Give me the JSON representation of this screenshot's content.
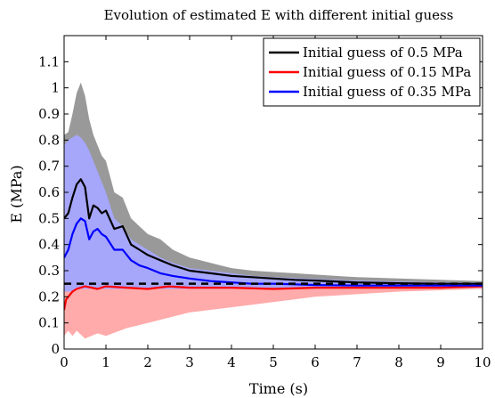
{
  "chart_data": {
    "type": "line",
    "title": "Evolution of estimated E with different initial guess",
    "xlabel": "Time (s)",
    "ylabel": "E (MPa)",
    "xlim": [
      0,
      10
    ],
    "ylim": [
      0,
      1.2
    ],
    "xticks": [
      0,
      1,
      2,
      3,
      4,
      5,
      6,
      7,
      8,
      9,
      10
    ],
    "yticks": [
      0,
      0.1,
      0.2,
      0.3,
      0.4,
      0.5,
      0.6,
      0.7,
      0.8,
      0.9,
      1,
      1.1
    ],
    "grid": false,
    "legend_position": "top-right",
    "reference_line": {
      "y": 0.25,
      "style": "dashed",
      "color": "#000000"
    },
    "series": [
      {
        "name": "Initial guess of 0.5 MPa",
        "color": "#000000",
        "band_color": "#999999",
        "x": [
          0,
          0.1,
          0.2,
          0.3,
          0.4,
          0.5,
          0.6,
          0.7,
          0.8,
          0.9,
          1.0,
          1.2,
          1.4,
          1.6,
          1.8,
          2.0,
          2.3,
          2.6,
          3.0,
          3.5,
          4.0,
          4.5,
          5.0,
          5.5,
          6.0,
          7.0,
          8.0,
          9.0,
          10.0
        ],
        "values": [
          0.5,
          0.52,
          0.58,
          0.63,
          0.65,
          0.62,
          0.5,
          0.55,
          0.54,
          0.52,
          0.53,
          0.46,
          0.47,
          0.4,
          0.38,
          0.36,
          0.34,
          0.32,
          0.3,
          0.29,
          0.28,
          0.275,
          0.27,
          0.265,
          0.262,
          0.255,
          0.252,
          0.25,
          0.25
        ],
        "band_upper": [
          0.82,
          0.83,
          0.9,
          0.98,
          1.02,
          0.97,
          0.88,
          0.82,
          0.78,
          0.74,
          0.72,
          0.6,
          0.58,
          0.5,
          0.47,
          0.44,
          0.42,
          0.38,
          0.35,
          0.33,
          0.31,
          0.3,
          0.295,
          0.29,
          0.285,
          0.275,
          0.27,
          0.265,
          0.26
        ],
        "band_lower": [
          0.22,
          0.22,
          0.22,
          0.23,
          0.23,
          0.23,
          0.23,
          0.23,
          0.23,
          0.23,
          0.23,
          0.23,
          0.23,
          0.23,
          0.23,
          0.23,
          0.23,
          0.23,
          0.23,
          0.23,
          0.23,
          0.23,
          0.23,
          0.23,
          0.23,
          0.235,
          0.235,
          0.235,
          0.235
        ]
      },
      {
        "name": "Initial guess of 0.15 MPa",
        "color": "#ff0000",
        "band_color": "#ffa6a6",
        "x": [
          0,
          0.05,
          0.1,
          0.2,
          0.3,
          0.5,
          0.8,
          1.0,
          1.5,
          2.0,
          2.5,
          3.0,
          4.0,
          5.0,
          6.0,
          7.0,
          8.0,
          9.0,
          10.0
        ],
        "values": [
          0.15,
          0.19,
          0.2,
          0.22,
          0.23,
          0.24,
          0.23,
          0.24,
          0.235,
          0.23,
          0.24,
          0.235,
          0.235,
          0.23,
          0.235,
          0.235,
          0.235,
          0.235,
          0.24
        ],
        "band_upper": [
          0.22,
          0.22,
          0.23,
          0.23,
          0.24,
          0.24,
          0.24,
          0.24,
          0.24,
          0.24,
          0.24,
          0.24,
          0.24,
          0.24,
          0.24,
          0.24,
          0.24,
          0.24,
          0.24
        ],
        "band_lower": [
          0.05,
          0.06,
          0.07,
          0.05,
          0.07,
          0.04,
          0.06,
          0.05,
          0.08,
          0.1,
          0.12,
          0.14,
          0.16,
          0.18,
          0.2,
          0.21,
          0.22,
          0.225,
          0.23
        ]
      },
      {
        "name": "Initial guess of 0.35 MPa",
        "color": "#0000ff",
        "band_color": "#a6a6ff",
        "x": [
          0,
          0.1,
          0.2,
          0.3,
          0.4,
          0.5,
          0.6,
          0.7,
          0.8,
          0.9,
          1.0,
          1.2,
          1.4,
          1.6,
          1.8,
          2.0,
          2.3,
          2.6,
          3.0,
          3.5,
          4.0,
          4.5,
          5.0,
          5.5,
          6.0,
          7.0,
          8.0,
          9.0,
          10.0
        ],
        "values": [
          0.35,
          0.38,
          0.44,
          0.48,
          0.5,
          0.49,
          0.42,
          0.45,
          0.46,
          0.44,
          0.43,
          0.38,
          0.38,
          0.34,
          0.32,
          0.31,
          0.29,
          0.28,
          0.27,
          0.26,
          0.255,
          0.25,
          0.25,
          0.248,
          0.245,
          0.243,
          0.243,
          0.243,
          0.243
        ],
        "band_upper": [
          0.78,
          0.8,
          0.81,
          0.82,
          0.81,
          0.79,
          0.76,
          0.72,
          0.68,
          0.64,
          0.6,
          0.5,
          0.47,
          0.42,
          0.4,
          0.38,
          0.35,
          0.33,
          0.31,
          0.3,
          0.29,
          0.28,
          0.275,
          0.272,
          0.268,
          0.262,
          0.258,
          0.255,
          0.253
        ],
        "band_lower": [
          0.22,
          0.22,
          0.22,
          0.23,
          0.23,
          0.23,
          0.23,
          0.23,
          0.23,
          0.23,
          0.23,
          0.23,
          0.23,
          0.23,
          0.23,
          0.23,
          0.23,
          0.23,
          0.23,
          0.23,
          0.23,
          0.23,
          0.23,
          0.23,
          0.23,
          0.235,
          0.235,
          0.235,
          0.235
        ]
      }
    ]
  }
}
